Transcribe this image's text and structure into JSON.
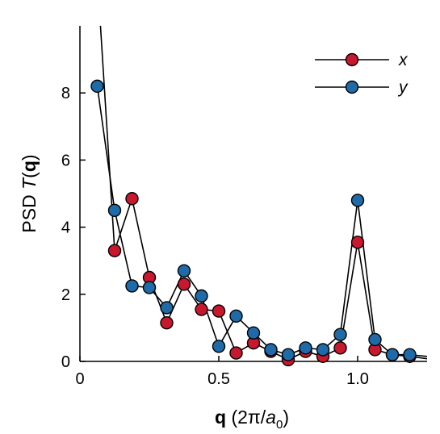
{
  "chart_data": {
    "type": "line",
    "title": "",
    "xlabel": {
      "bold": "q",
      "pre": " (2π/",
      "var": "a",
      "sub": "0",
      "post": ")"
    },
    "ylabel": {
      "pre": "PSD ",
      "var": "T",
      "open": "(",
      "bold": "q",
      "close": ")"
    },
    "xlim": [
      0,
      1.25
    ],
    "ylim": [
      0,
      10
    ],
    "xticks": [
      0,
      0.5,
      1.0
    ],
    "xtick_labels": [
      "0",
      "0.5",
      "1.0"
    ],
    "yticks": [
      0,
      2,
      4,
      6,
      8
    ],
    "ytick_labels": [
      "0",
      "2",
      "4",
      "6",
      "8"
    ],
    "grid": false,
    "legend_position": "top-right",
    "series": [
      {
        "name": "x",
        "color": "#c8182d",
        "x": [
          0.0625,
          0.125,
          0.1875,
          0.25,
          0.3125,
          0.375,
          0.4375,
          0.5,
          0.5625,
          0.625,
          0.6875,
          0.75,
          0.8125,
          0.875,
          0.9375,
          1.0,
          1.0625,
          1.125,
          1.1875,
          1.25
        ],
        "y": [
          11.5,
          3.3,
          4.85,
          2.5,
          1.15,
          2.3,
          1.55,
          1.5,
          0.25,
          0.55,
          0.3,
          0.05,
          0.3,
          0.15,
          0.4,
          3.55,
          0.35,
          0.2,
          0.15,
          0.08
        ]
      },
      {
        "name": "y",
        "color": "#1f6aa8",
        "x": [
          0.0625,
          0.125,
          0.1875,
          0.25,
          0.3125,
          0.375,
          0.4375,
          0.5,
          0.5625,
          0.625,
          0.6875,
          0.75,
          0.8125,
          0.875,
          0.9375,
          1.0,
          1.0625,
          1.125,
          1.1875,
          1.25
        ],
        "y": [
          8.2,
          4.5,
          2.25,
          2.2,
          1.6,
          2.7,
          1.95,
          0.45,
          1.35,
          0.85,
          0.35,
          0.2,
          0.4,
          0.35,
          0.8,
          4.8,
          0.65,
          0.2,
          0.2,
          0.15
        ]
      }
    ]
  }
}
